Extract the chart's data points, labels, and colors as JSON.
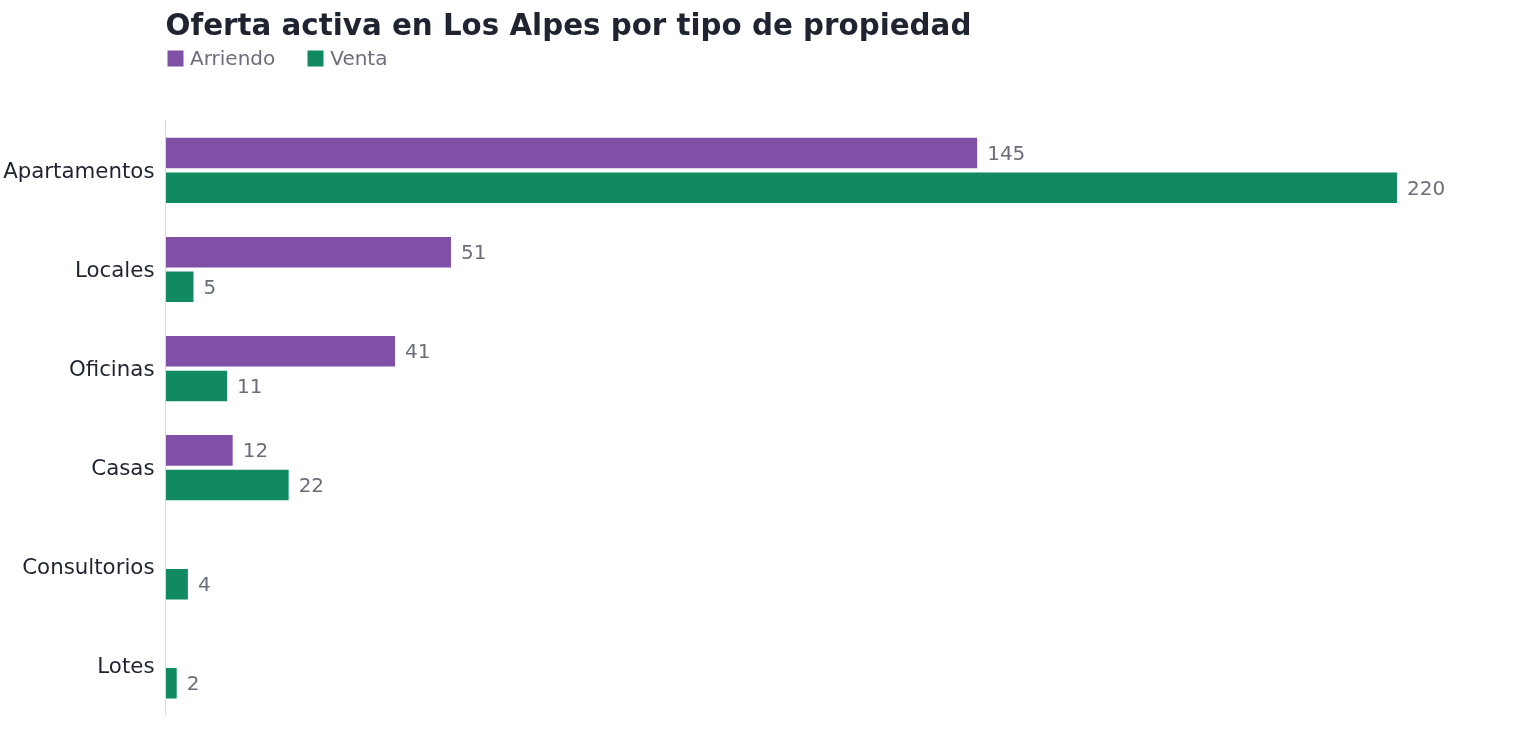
{
  "chart_data": {
    "type": "bar",
    "orientation": "horizontal",
    "title": "Oferta activa en Los Alpes por tipo de propiedad",
    "categories": [
      "Apartamentos",
      "Locales",
      "Oficinas",
      "Casas",
      "Consultorios",
      "Lotes"
    ],
    "series": [
      {
        "name": "Arriendo",
        "color": "#7f50a5",
        "values": [
          145,
          51,
          41,
          12,
          null,
          null
        ]
      },
      {
        "name": "Venta",
        "color": "#118a62",
        "values": [
          220,
          5,
          11,
          22,
          4,
          2
        ]
      }
    ],
    "data_labels": true,
    "legend": "top left",
    "grid": false
  }
}
